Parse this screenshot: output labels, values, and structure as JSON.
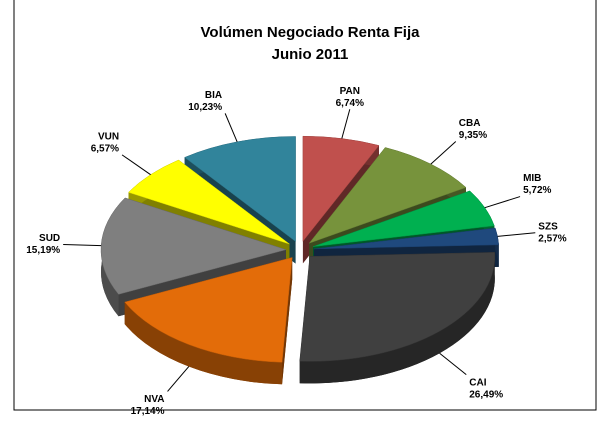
{
  "chart_data": {
    "type": "pie",
    "title": "Volúmen Negociado Renta Fija",
    "subtitle": "Junio 2011",
    "categories": [
      "PAN",
      "CBA",
      "MIB",
      "SZS",
      "CAI",
      "NVA",
      "SUD",
      "VUN",
      "BIA"
    ],
    "values": [
      6.74,
      9.35,
      5.72,
      2.57,
      26.49,
      17.14,
      15.19,
      6.57,
      10.23
    ],
    "value_labels": [
      "6,74%",
      "9,35%",
      "5,72%",
      "2,57%",
      "26,49%",
      "17,14%",
      "15,19%",
      "6,57%",
      "10,23%"
    ],
    "colors": [
      "#c0504d",
      "#77933c",
      "#00b050",
      "#1f497d",
      "#404040",
      "#e36c09",
      "#7f7f7f",
      "#ffff00",
      "#31849b"
    ]
  }
}
